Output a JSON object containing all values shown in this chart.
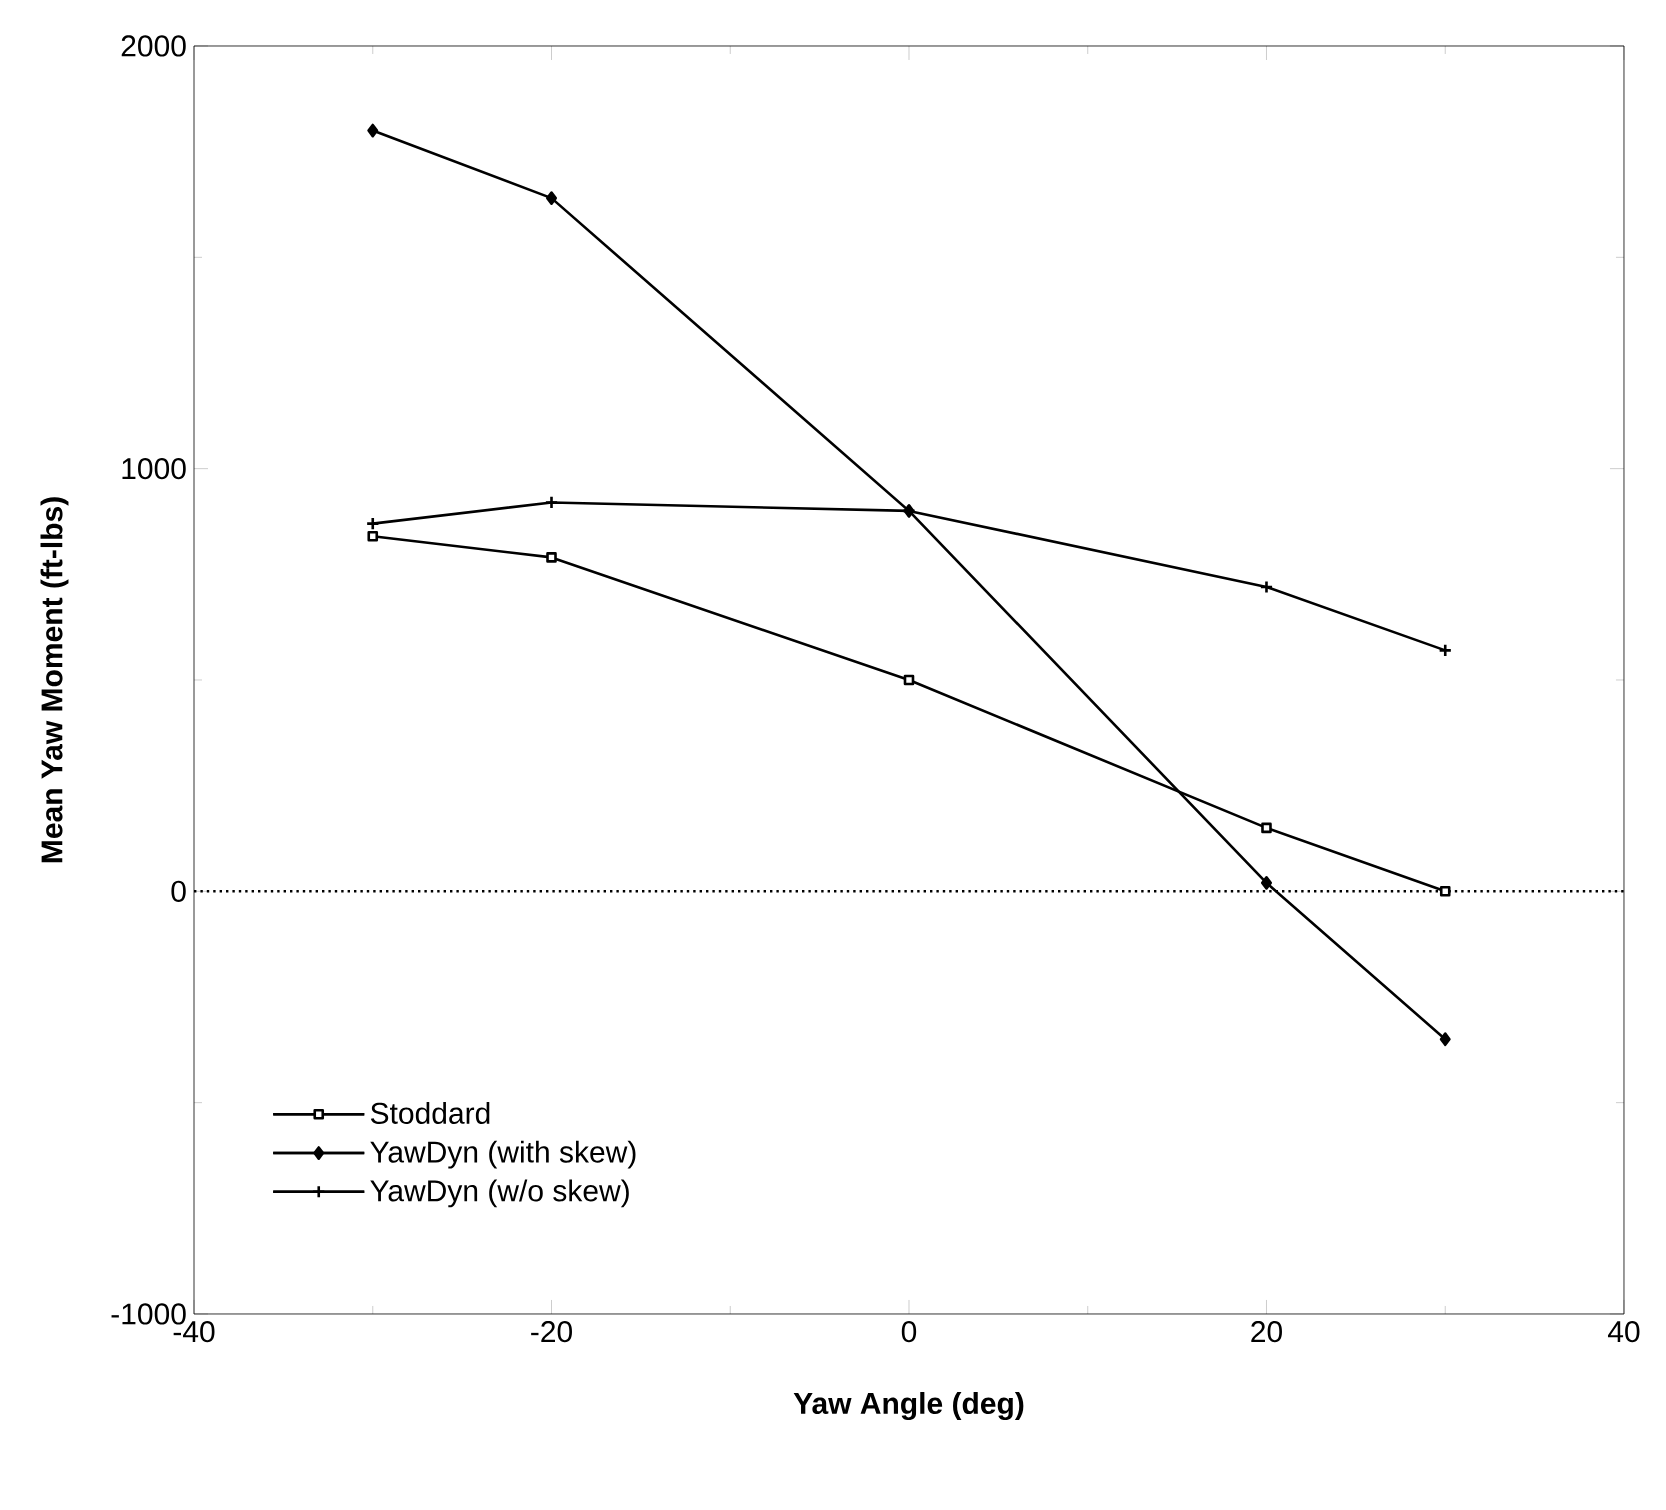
{
  "chart_data": {
    "type": "line",
    "xlabel": "Yaw Angle (deg)",
    "ylabel": "Mean  Yaw  Moment  (ft-lbs)",
    "x": [
      -30,
      -20,
      0,
      20,
      30
    ],
    "series": [
      {
        "name": "Stoddard",
        "color": "#000000",
        "marker": "square",
        "values": [
          840,
          790,
          500,
          150,
          0
        ]
      },
      {
        "name": "YawDyn (with skew)",
        "color": "#000000",
        "marker": "diamond",
        "values": [
          1800,
          1640,
          900,
          20,
          -350
        ]
      },
      {
        "name": "YawDyn (w/o skew)",
        "color": "#000000",
        "marker": "cross",
        "values": [
          870,
          920,
          900,
          720,
          570
        ]
      }
    ],
    "xlim": [
      -40,
      40
    ],
    "xticks": [
      -40,
      -20,
      0,
      20,
      40
    ],
    "ylim": [
      -1000,
      2000
    ],
    "yticks": [
      -1000,
      0,
      1000,
      2000
    ],
    "ref_lines": [
      {
        "axis": "y",
        "value": 0,
        "line_style": "dotted"
      }
    ],
    "legend": "bottom left",
    "grid": false,
    "line_style": "solid"
  }
}
